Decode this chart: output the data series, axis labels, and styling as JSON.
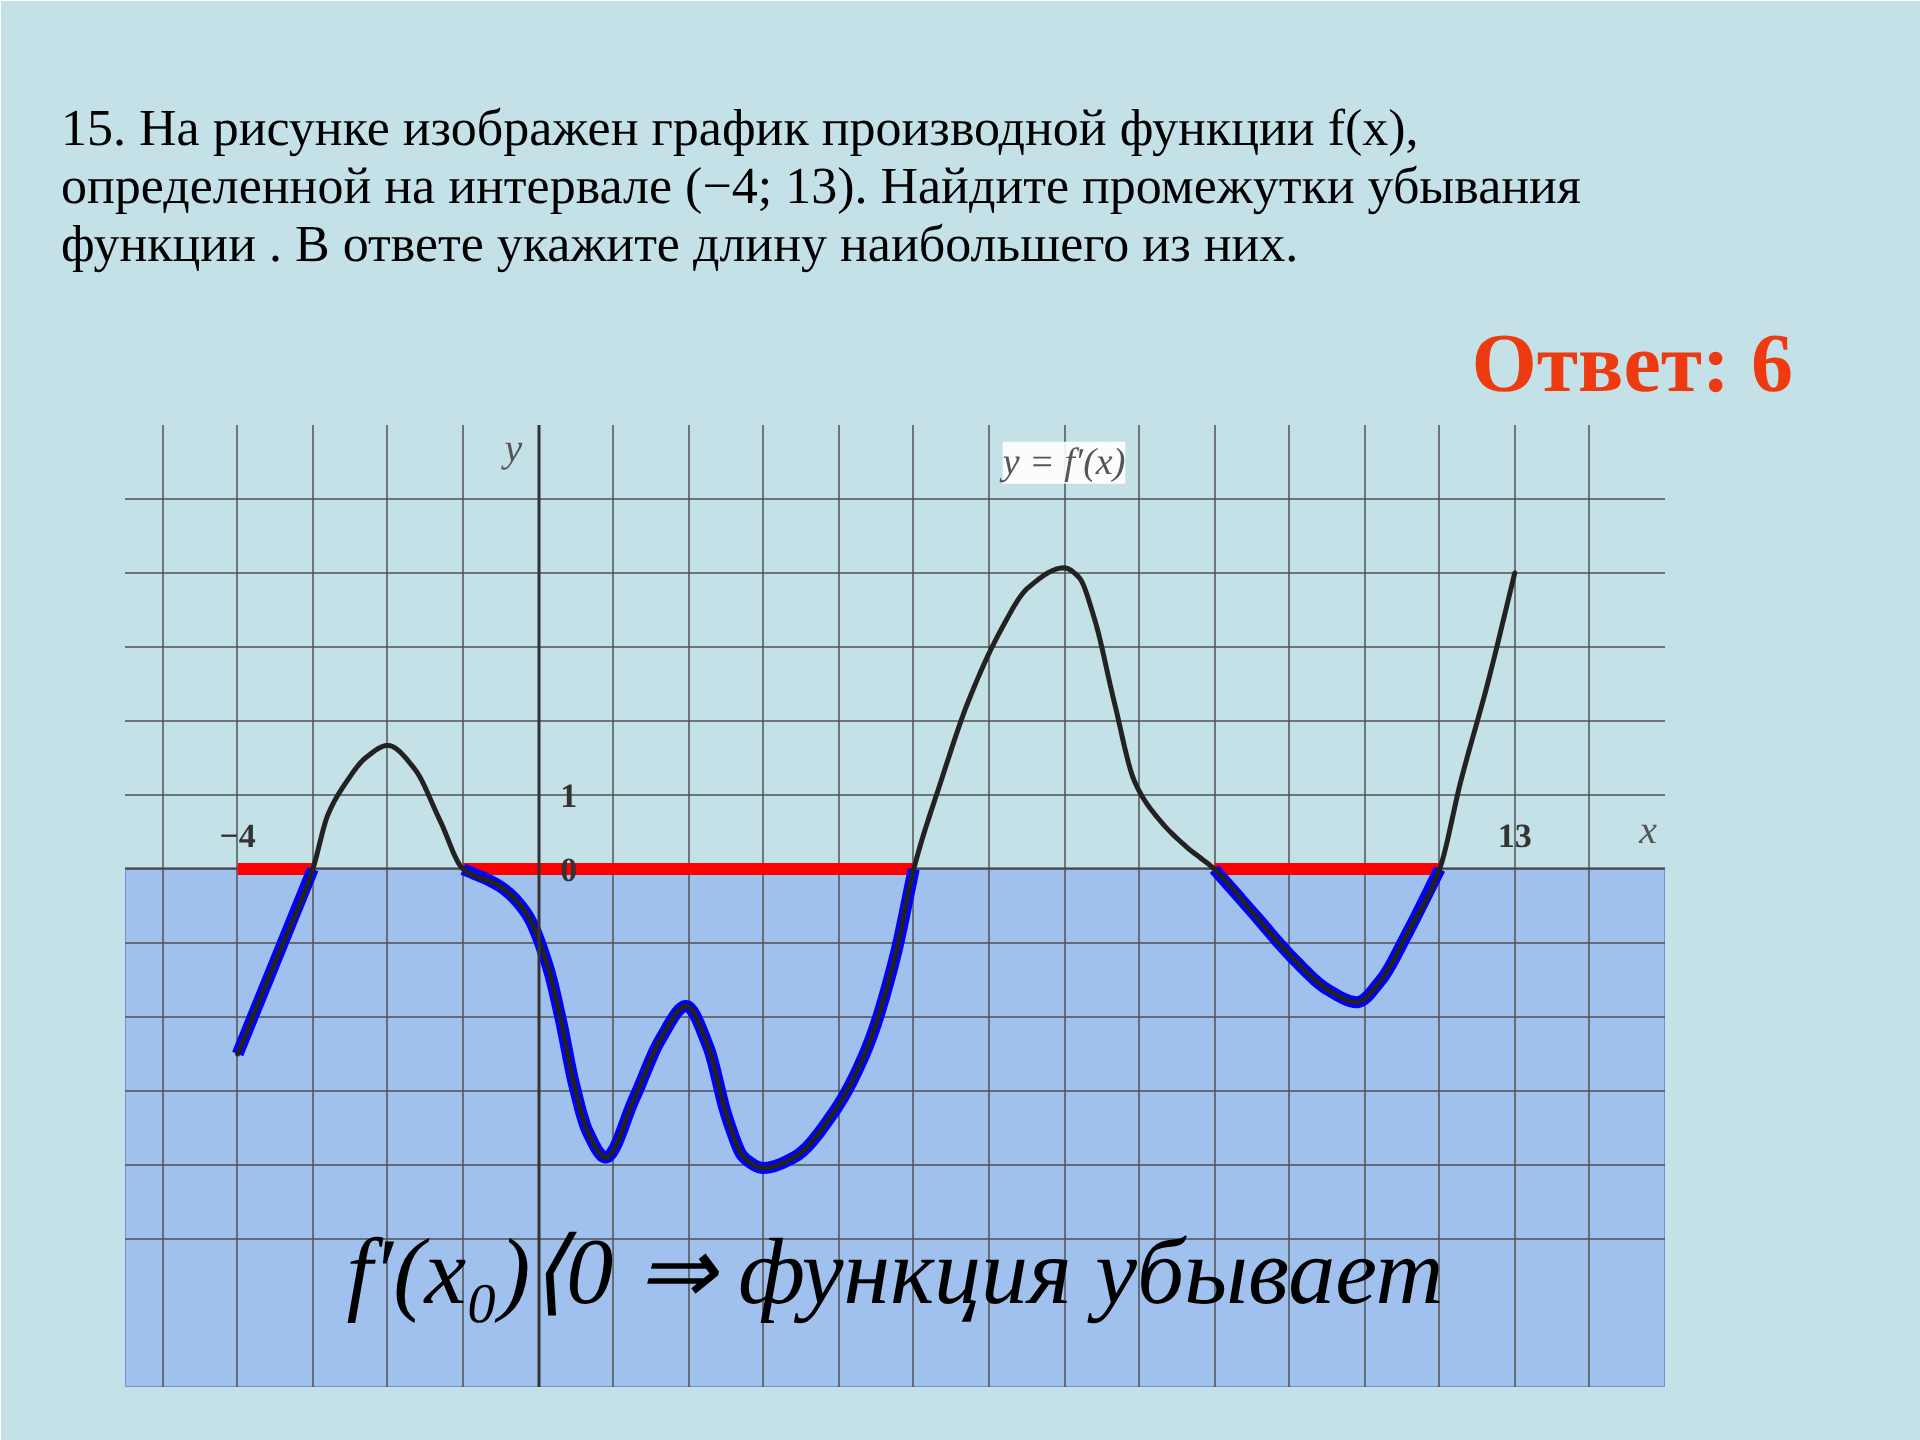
{
  "chart_data": {
    "type": "line",
    "title": "15. На рисунке изображен график производной функции f(x), определенной на интервале (−4; 13). Найдите промежутки убывания функции . В ответе укажите длину наибольшего из них.",
    "xlabel": "x",
    "ylabel": "y",
    "xlim": [
      -5.5,
      15
    ],
    "ylim": [
      -7,
      6
    ],
    "xticks": [
      {
        "value": -5,
        "label": null
      },
      {
        "value": -4,
        "label": "−4"
      },
      {
        "value": -3,
        "label": null
      },
      {
        "value": -2,
        "label": null
      },
      {
        "value": -1,
        "label": null
      },
      {
        "value": 0,
        "label": null
      },
      {
        "value": 1,
        "label": null
      },
      {
        "value": 2,
        "label": null
      },
      {
        "value": 3,
        "label": null
      },
      {
        "value": 4,
        "label": null
      },
      {
        "value": 5,
        "label": null
      },
      {
        "value": 6,
        "label": null
      },
      {
        "value": 7,
        "label": null
      },
      {
        "value": 8,
        "label": null
      },
      {
        "value": 9,
        "label": null
      },
      {
        "value": 10,
        "label": null
      },
      {
        "value": 11,
        "label": null
      },
      {
        "value": 12,
        "label": null
      },
      13,
      {
        "value": 14,
        "label": null
      }
    ],
    "yticks": [
      {
        "value": -5,
        "label": null
      },
      {
        "value": -4,
        "label": null
      },
      {
        "value": -3,
        "label": null
      },
      {
        "value": -2,
        "label": null
      },
      {
        "value": -1,
        "label": null
      },
      0,
      1,
      {
        "value": 2,
        "label": null
      },
      {
        "value": 3,
        "label": null
      },
      {
        "value": 4,
        "label": null
      },
      {
        "value": 5,
        "label": null
      }
    ],
    "grid": true,
    "annotations": [
      "Ответ: 6"
    ],
    "bands": [
      {
        "axis": "y",
        "from": -7,
        "to": 0,
        "label": "f′(x₀)⟨0 ⇒ функция убывает",
        "color": "#a0c0ee"
      }
    ],
    "series": [
      {
        "color": "#ff0000",
        "x": [
          -4,
          -3
        ],
        "values": [
          0,
          0
        ]
      },
      {
        "color": "#ff0000",
        "x": [
          -1,
          5
        ],
        "values": [
          0,
          0
        ]
      },
      {
        "color": "#ff0000",
        "x": [
          9,
          12
        ],
        "values": [
          0,
          0
        ]
      },
      {
        "color": "#0000ff",
        "x": [
          -4,
          -3.5,
          -3
        ],
        "values": [
          -2.5,
          -1.25,
          0
        ]
      },
      {
        "color": "#0000ff",
        "x": [
          -1,
          -0.5,
          -0.15,
          0.13,
          0.3,
          0.48,
          0.66,
          0.9,
          1.28,
          1.63,
          1.97,
          2.26,
          2.52,
          2.74,
          3,
          3.4,
          3.94,
          4.39,
          4.74,
          5
        ],
        "values": [
          0,
          -0.24,
          -0.61,
          -1.32,
          -2.03,
          -2.92,
          -3.55,
          -3.9,
          -3.1,
          -2.3,
          -1.85,
          -2.39,
          -3.37,
          -3.9,
          -4.04,
          -3.9,
          -3.28,
          -2.39,
          -1.23,
          0
        ]
      },
      {
        "color": "#0000ff",
        "x": [
          9,
          9.53,
          10.07,
          10.51,
          10.9,
          11.22,
          11.57,
          12
        ],
        "values": [
          0,
          -0.61,
          -1.23,
          -1.63,
          -1.8,
          -1.5,
          -0.87,
          0
        ]
      },
      {
        "name": "y = f′(x)",
        "color": "#222222",
        "x": [
          -4,
          -3.5,
          -3,
          -2.8,
          -2.55,
          -2.3,
          -2,
          -1.65,
          -1.3,
          -1,
          -0.5,
          -0.15,
          0.13,
          0.3,
          0.48,
          0.66,
          0.9,
          1.28,
          1.63,
          1.97,
          2.26,
          2.52,
          2.74,
          3,
          3.4,
          3.94,
          4.39,
          4.74,
          5,
          5.36,
          5.72,
          6.16,
          6.52,
          7,
          7.2,
          7.4,
          7.67,
          7.94,
          8.29,
          8.64,
          9,
          9.53,
          10.07,
          10.51,
          10.9,
          11.22,
          11.57,
          12,
          12.28,
          12.64,
          13
        ],
        "values": [
          -2.5,
          -1.25,
          0,
          0.73,
          1.18,
          1.5,
          1.67,
          1.36,
          0.64,
          0,
          -0.24,
          -0.61,
          -1.32,
          -2.03,
          -2.92,
          -3.55,
          -3.9,
          -3.1,
          -2.3,
          -1.85,
          -2.39,
          -3.37,
          -3.9,
          -4.04,
          -3.9,
          -3.28,
          -2.39,
          -1.23,
          0,
          1.18,
          2.25,
          3.23,
          3.8,
          4.07,
          3.94,
          3.4,
          2.25,
          1.18,
          0.64,
          0.29,
          0,
          -0.61,
          -1.23,
          -1.63,
          -1.8,
          -1.5,
          -0.87,
          0,
          1.18,
          2.51,
          4.0
        ]
      }
    ]
  }
}
